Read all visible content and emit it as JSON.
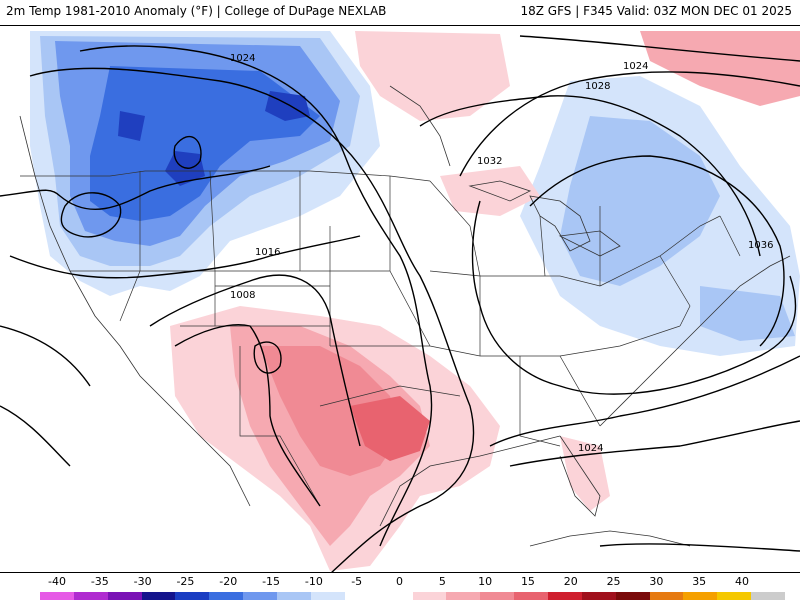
{
  "header": {
    "left_title": "2m Temp 1981-2010 Anomaly (°F) | College of DuPage NEXLAB",
    "right_title": "18Z GFS | F345 Valid: 03Z MON DEC 01 2025"
  },
  "map": {
    "isobar_labels": [
      "1024",
      "1024",
      "1028",
      "1032",
      "1036",
      "1016",
      "1008",
      "1024"
    ],
    "anomaly_colors": {
      "cold_deep": "#1f3fbf",
      "cold_strong": "#3a6ee0",
      "cold_medium": "#6f98ee",
      "cold_light": "#a9c6f5",
      "cold_faint": "#d4e4fb",
      "warm_faint": "#fbd3d8",
      "warm_light": "#f6a9b1",
      "warm_medium": "#f08a94",
      "warm_strong": "#e8636f"
    },
    "line_colors": {
      "isobar": "#000000",
      "borders": "#333333"
    }
  },
  "colorbar": {
    "ticks": [
      "-40",
      "-35",
      "-30",
      "-25",
      "-20",
      "-15",
      "-10",
      "-5",
      "0",
      "5",
      "10",
      "15",
      "20",
      "25",
      "30",
      "35",
      "40"
    ],
    "segment_colors": [
      "#e65ae6",
      "#b02bd0",
      "#7a12b5",
      "#14148c",
      "#1a3dc2",
      "#3a6ee0",
      "#6f98ee",
      "#a9c6f5",
      "#d4e4fb",
      "#ffffff",
      "#ffffff",
      "#fbd3d8",
      "#f6a9b1",
      "#f08a94",
      "#e8636f",
      "#cf1f2e",
      "#a0101c",
      "#7a0a0a",
      "#e67a10",
      "#f5a000",
      "#f5c800",
      "#cccccc"
    ]
  }
}
